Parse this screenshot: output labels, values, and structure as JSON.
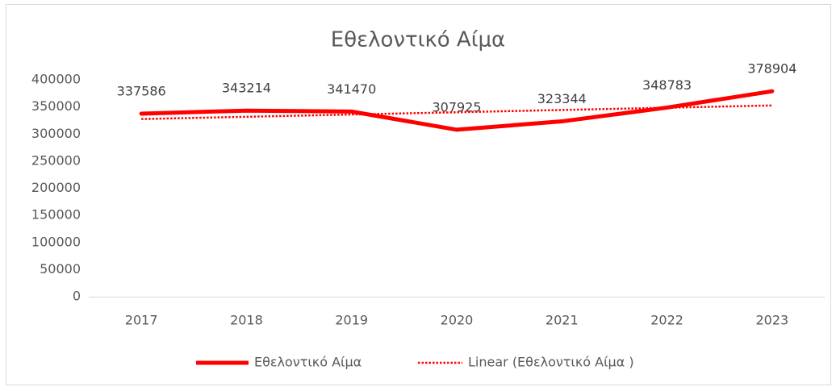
{
  "chart_data": {
    "type": "line",
    "title": "Εθελοντικό Αίμα",
    "categories": [
      "2017",
      "2018",
      "2019",
      "2020",
      "2021",
      "2022",
      "2023"
    ],
    "series": [
      {
        "name": "Εθελοντικό Αίμα",
        "color": "#ff0000",
        "values": [
          337586,
          343214,
          341470,
          307925,
          323344,
          348783,
          378904
        ]
      },
      {
        "name": "Linear (Εθελοντικό Αίμα )",
        "color": "#ff0000",
        "style": "dotted",
        "values": [
          327643,
          331820,
          335998,
          340175,
          344352,
          348530,
          352707
        ]
      }
    ],
    "ylim": [
      0,
      400000
    ],
    "yticks": [
      0,
      50000,
      100000,
      150000,
      200000,
      250000,
      300000,
      350000,
      400000
    ],
    "grid": false,
    "legend": "bottom",
    "data_labels": [
      true,
      false
    ]
  }
}
